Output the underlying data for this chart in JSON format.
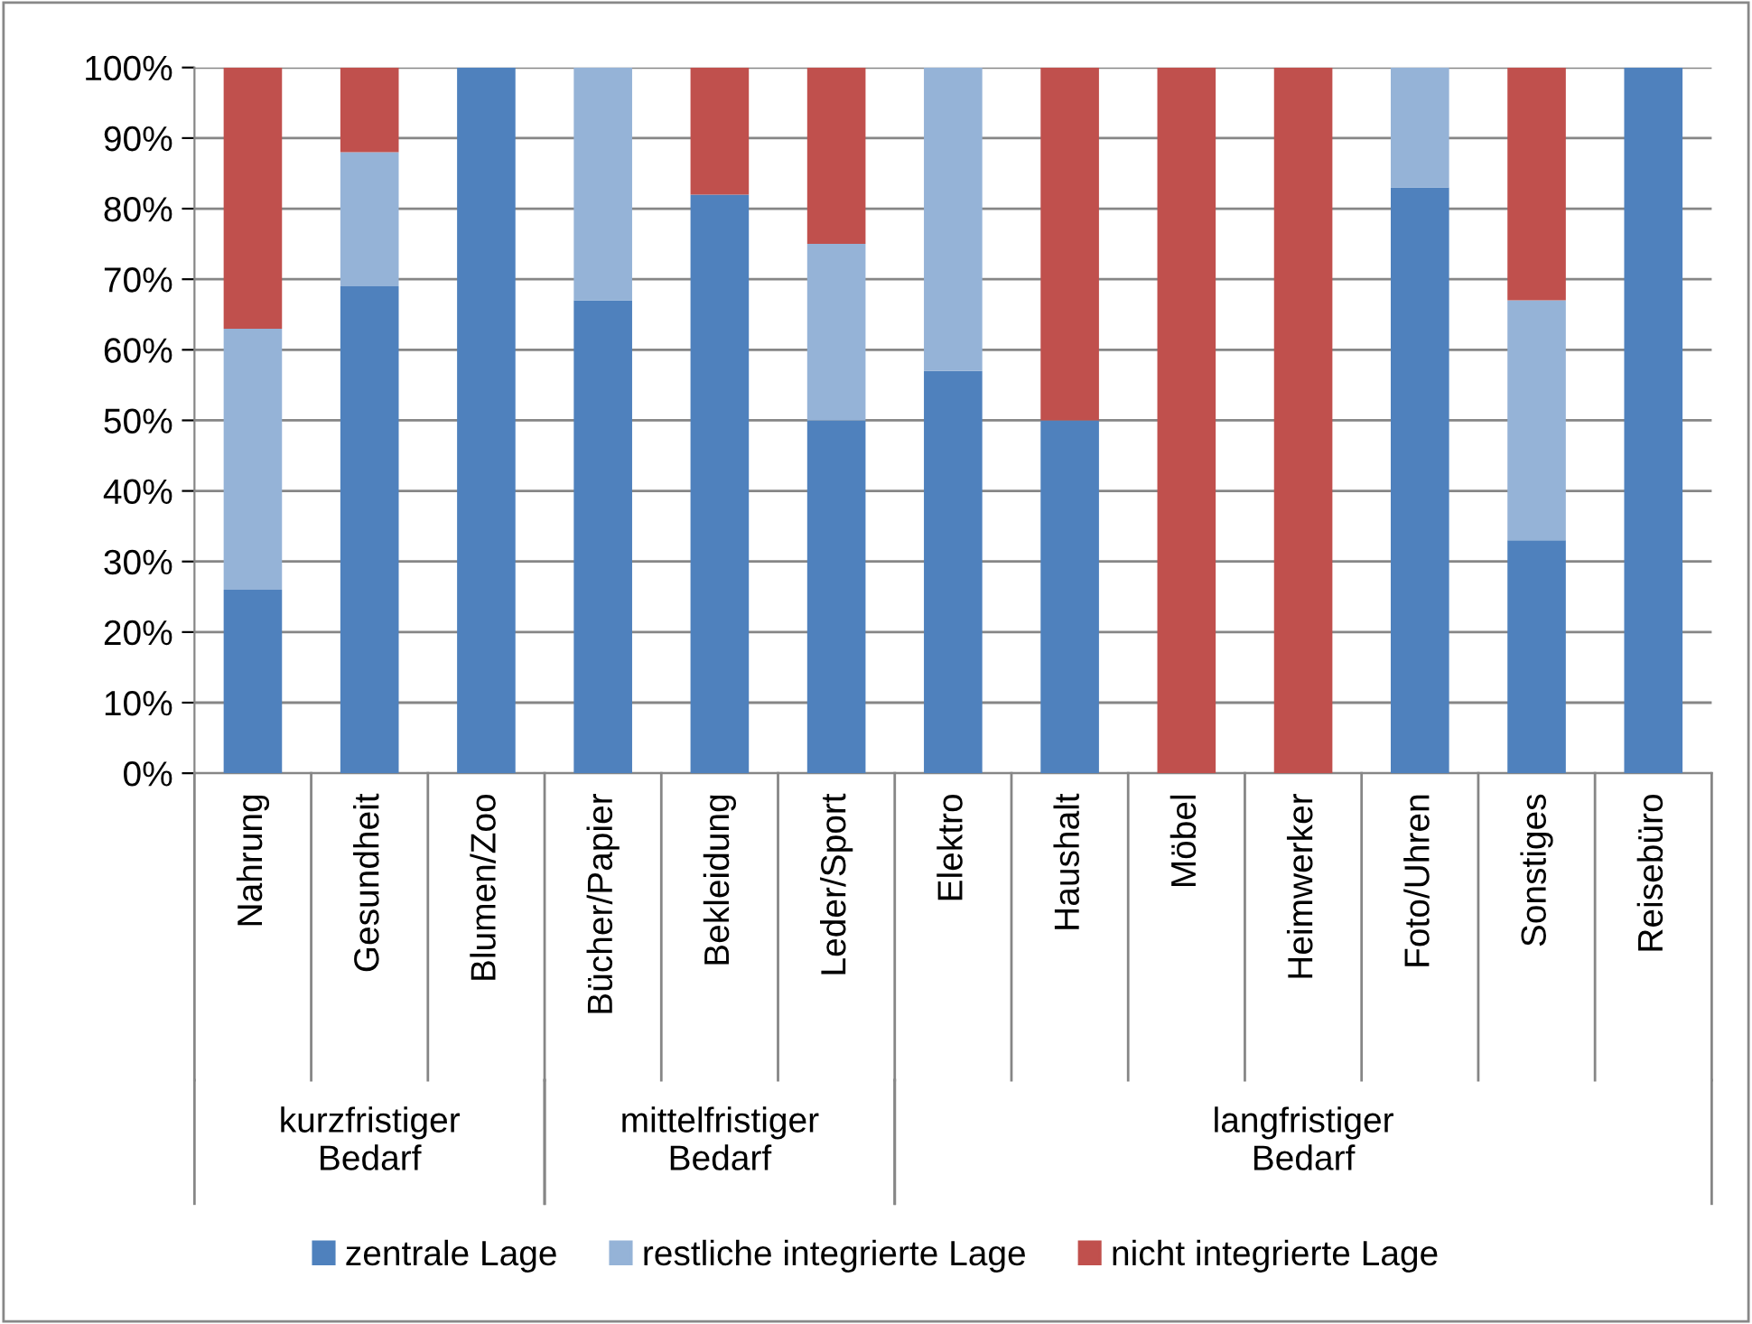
{
  "chart_data": {
    "type": "bar",
    "stacked": true,
    "categories": [
      "Nahrung",
      "Gesundheit",
      "Blumen/Zoo",
      "Bücher/Papier",
      "Bekleidung",
      "Leder/Sport",
      "Elektro",
      "Haushalt",
      "Möbel",
      "Heimwerker",
      "Foto/Uhren",
      "Sonstiges",
      "Reisebüro"
    ],
    "series": [
      {
        "name": "zentrale Lage",
        "color": "#4f81bd",
        "values": [
          26,
          69,
          100,
          67,
          82,
          50,
          57,
          50,
          0,
          0,
          83,
          33,
          100
        ]
      },
      {
        "name": "restliche integrierte Lage",
        "color": "#95b3d7",
        "values": [
          37,
          19,
          0,
          33,
          0,
          25,
          43,
          0,
          0,
          0,
          17,
          34,
          0
        ]
      },
      {
        "name": "nicht integrierte Lage",
        "color": "#c0504d",
        "values": [
          37,
          12,
          0,
          0,
          18,
          25,
          0,
          50,
          100,
          100,
          0,
          33,
          0
        ]
      }
    ],
    "ylim": [
      0,
      100
    ],
    "yticks": [
      {
        "value": 0,
        "label": "0%"
      },
      {
        "value": 10,
        "label": "10%"
      },
      {
        "value": 20,
        "label": "20%"
      },
      {
        "value": 30,
        "label": "30%"
      },
      {
        "value": 40,
        "label": "40%"
      },
      {
        "value": 50,
        "label": "50%"
      },
      {
        "value": 60,
        "label": "60%"
      },
      {
        "value": 70,
        "label": "70%"
      },
      {
        "value": 80,
        "label": "80%"
      },
      {
        "value": 90,
        "label": "90%"
      },
      {
        "value": 100,
        "label": "100%"
      }
    ],
    "grid": "y",
    "legend": "bottom",
    "annotations": [
      "kurzfristiger\nBedarf",
      "mittelfristiger\nBedarf",
      "langfristiger\nBedarf"
    ]
  }
}
